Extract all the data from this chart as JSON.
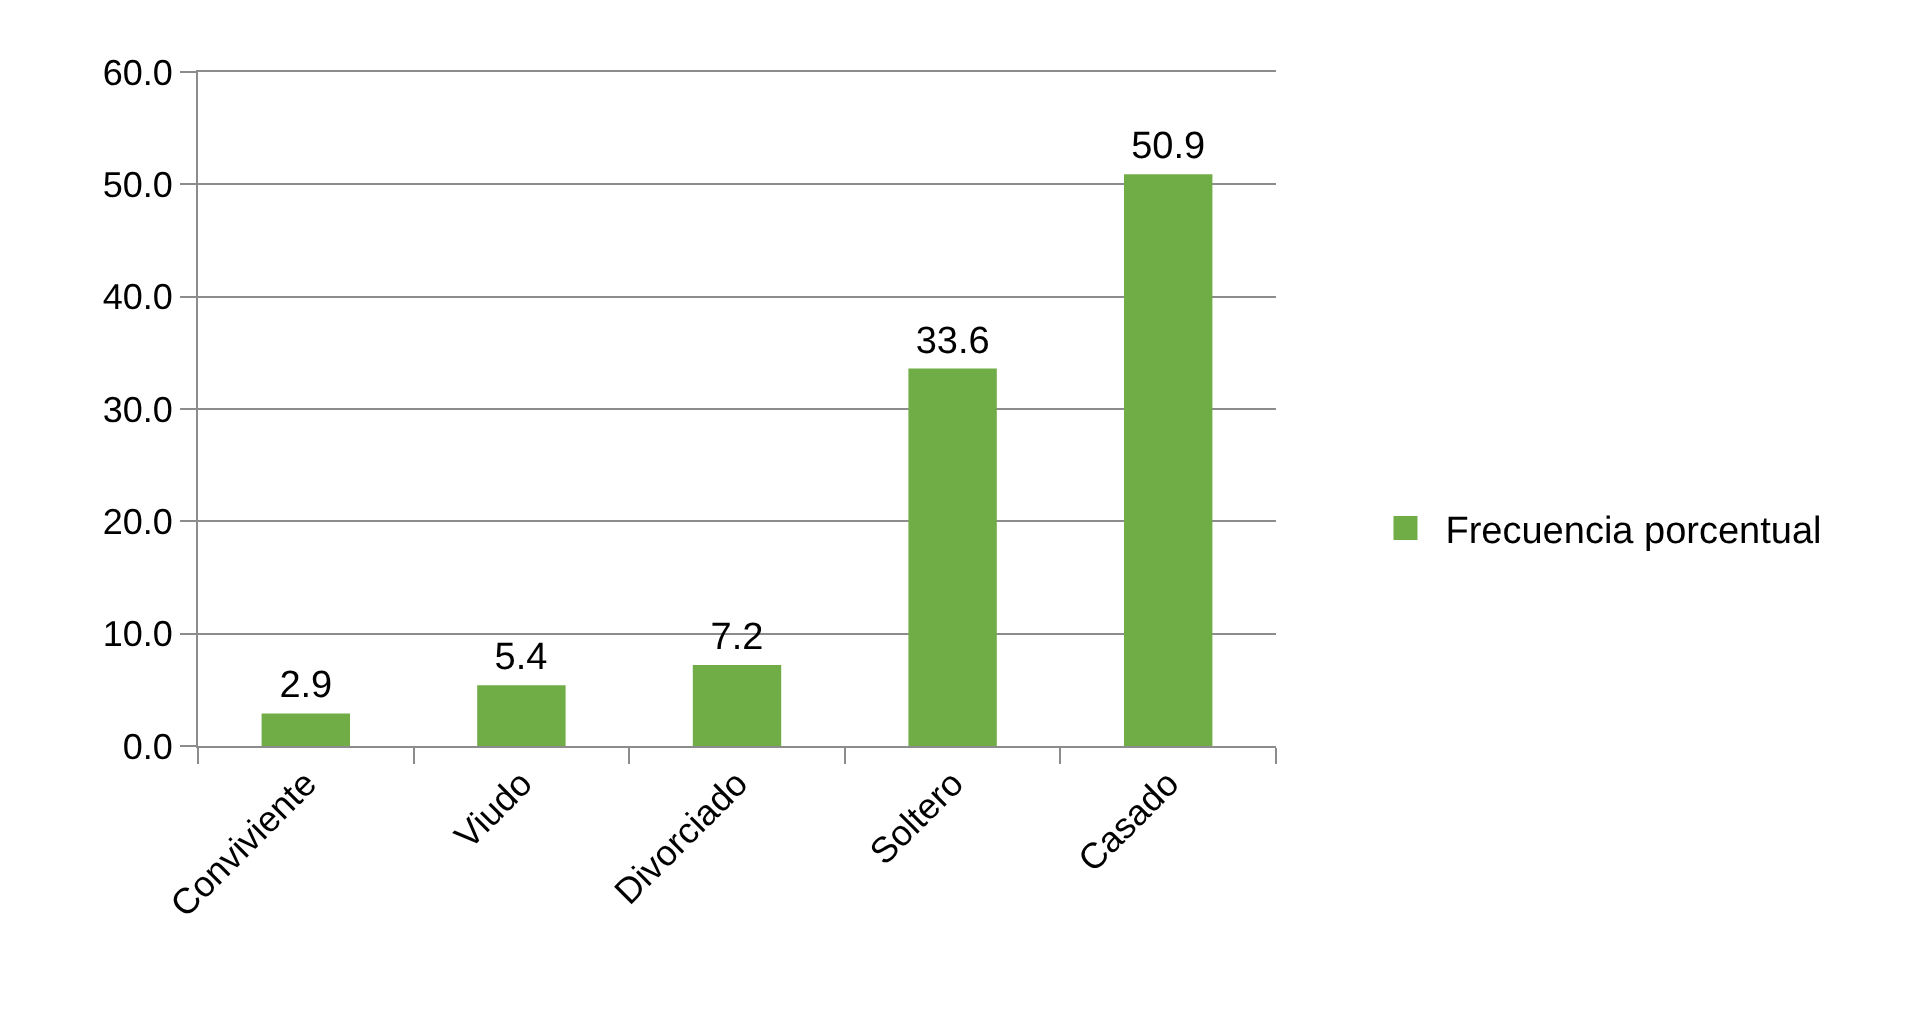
{
  "chart_data": {
    "type": "bar",
    "categories": [
      "Conviviente",
      "Viudo",
      "Divorciado",
      "Soltero",
      "Casado"
    ],
    "series": [
      {
        "name": "Frecuencia porcentual",
        "color": "#70ad47",
        "values": [
          2.9,
          5.4,
          7.2,
          33.6,
          50.9
        ]
      }
    ],
    "ylim": [
      0,
      60
    ],
    "yticks": [
      {
        "value": 0,
        "label": "0.0"
      },
      {
        "value": 10,
        "label": "10.0"
      },
      {
        "value": 20,
        "label": "20.0"
      },
      {
        "value": 30,
        "label": "30.0"
      },
      {
        "value": 40,
        "label": "40.0"
      },
      {
        "value": 50,
        "label": "50.0"
      },
      {
        "value": 60,
        "label": "60.0"
      }
    ],
    "grid": "y",
    "legend": "right",
    "data_labels": true
  }
}
